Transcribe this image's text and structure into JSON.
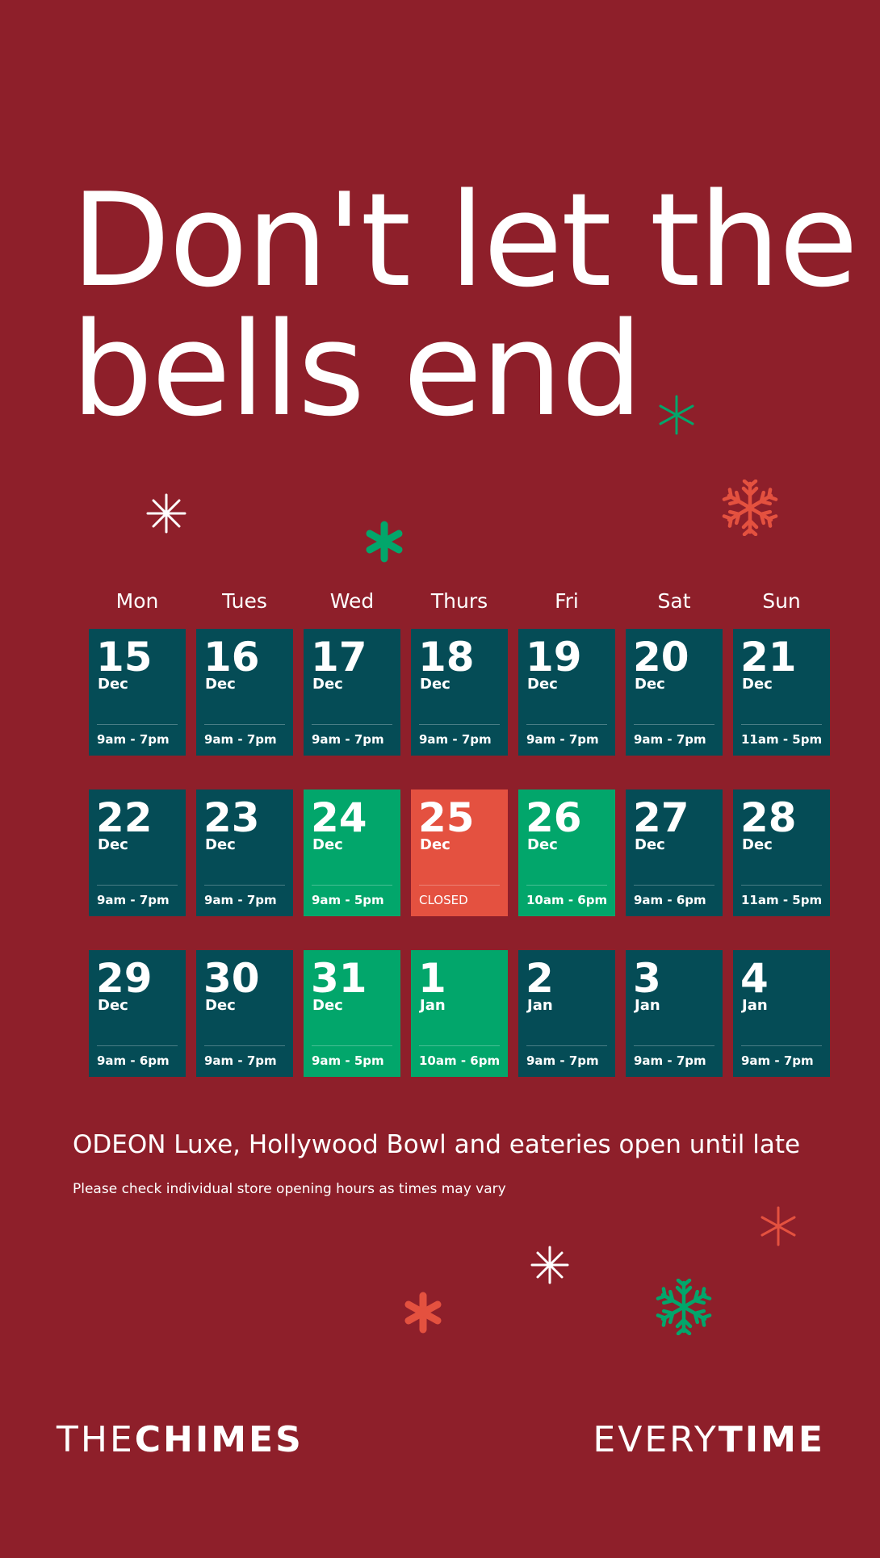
{
  "headline": {
    "line1": "Don't let the",
    "line2": "bells end"
  },
  "weekdays": [
    "Mon",
    "Tues",
    "Wed",
    "Thurs",
    "Fri",
    "Sat",
    "Sun"
  ],
  "calendar": [
    {
      "num": "15",
      "month": "Dec",
      "hours": "9am - 7pm",
      "tone": "teal"
    },
    {
      "num": "16",
      "month": "Dec",
      "hours": "9am - 7pm",
      "tone": "teal"
    },
    {
      "num": "17",
      "month": "Dec",
      "hours": "9am - 7pm",
      "tone": "teal"
    },
    {
      "num": "18",
      "month": "Dec",
      "hours": "9am - 7pm",
      "tone": "teal"
    },
    {
      "num": "19",
      "month": "Dec",
      "hours": "9am - 7pm",
      "tone": "teal"
    },
    {
      "num": "20",
      "month": "Dec",
      "hours": "9am - 7pm",
      "tone": "teal"
    },
    {
      "num": "21",
      "month": "Dec",
      "hours": "11am - 5pm",
      "tone": "teal"
    },
    {
      "num": "22",
      "month": "Dec",
      "hours": "9am - 7pm",
      "tone": "teal"
    },
    {
      "num": "23",
      "month": "Dec",
      "hours": "9am - 7pm",
      "tone": "teal"
    },
    {
      "num": "24",
      "month": "Dec",
      "hours": "9am - 5pm",
      "tone": "green"
    },
    {
      "num": "25",
      "month": "Dec",
      "hours": "CLOSED",
      "tone": "red"
    },
    {
      "num": "26",
      "month": "Dec",
      "hours": "10am - 6pm",
      "tone": "green"
    },
    {
      "num": "27",
      "month": "Dec",
      "hours": "9am - 6pm",
      "tone": "teal"
    },
    {
      "num": "28",
      "month": "Dec",
      "hours": "11am - 5pm",
      "tone": "teal"
    },
    {
      "num": "29",
      "month": "Dec",
      "hours": "9am - 6pm",
      "tone": "teal"
    },
    {
      "num": "30",
      "month": "Dec",
      "hours": "9am - 7pm",
      "tone": "teal"
    },
    {
      "num": "31",
      "month": "Dec",
      "hours": "9am - 5pm",
      "tone": "green"
    },
    {
      "num": "1",
      "month": "Jan",
      "hours": "10am - 6pm",
      "tone": "green"
    },
    {
      "num": "2",
      "month": "Jan",
      "hours": "9am - 7pm",
      "tone": "teal"
    },
    {
      "num": "3",
      "month": "Jan",
      "hours": "9am - 7pm",
      "tone": "teal"
    },
    {
      "num": "4",
      "month": "Jan",
      "hours": "9am - 7pm",
      "tone": "teal"
    }
  ],
  "info": "ODEON Luxe, Hollywood Bowl and eateries open until late",
  "note": "Please check individual store opening hours as times may vary",
  "brand_left": {
    "light": "THE",
    "bold": "CHIMES"
  },
  "brand_right": {
    "light": "EVERY",
    "bold": "TIME"
  },
  "colors": {
    "background": "#8e1f2a",
    "teal": "#054c56",
    "green": "#02a66b",
    "red": "#e45140",
    "coral": "#e4513f",
    "white": "#ffffff"
  },
  "icons": [
    "asterisk-icon",
    "snowflake-icon",
    "sparkle-icon"
  ]
}
